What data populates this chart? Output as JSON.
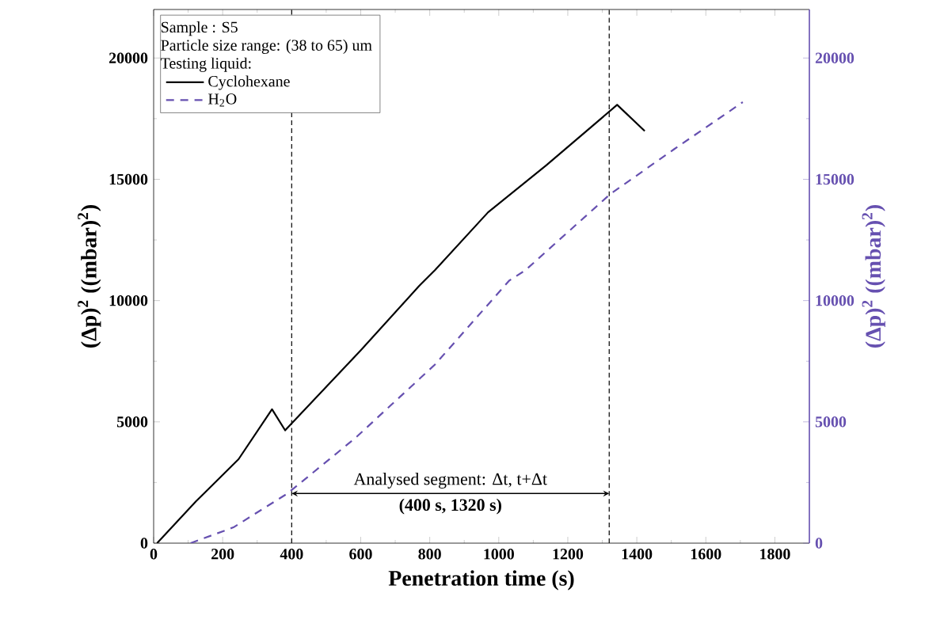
{
  "chart_data": {
    "type": "line",
    "xlabel": "Penetration time (s)",
    "ylabel": "(Δp)$^{2}$ ((mbar)$^{2}$)",
    "y2label": "(Δp)$^{2}$ ((mbar)$^{2}$)",
    "series": [
      {
        "name": "Cyclohexane",
        "color": "#000000",
        "line_style": "solid",
        "x": [
          10,
          123,
          246,
          343,
          381,
          600,
          769,
          815,
          969,
          1138,
          1343,
          1423
        ],
        "values": [
          0,
          1730,
          3460,
          5520,
          4650,
          7950,
          10600,
          11250,
          13640,
          15580,
          18070,
          16990
        ]
      },
      {
        "name": "H$_{2}$O",
        "color": "#6650b0",
        "line_style": "dashed",
        "axis": "y2",
        "x": [
          107,
          231,
          388,
          584,
          815,
          1030,
          1077,
          1323,
          1507,
          1707
        ],
        "values": [
          0,
          650,
          2050,
          4330,
          7360,
          10820,
          11250,
          14390,
          16230,
          18180
        ]
      }
    ],
    "xlim": [
      0,
      1900
    ],
    "xticks": [
      0,
      200,
      400,
      600,
      800,
      1000,
      1200,
      1400,
      1600,
      1800
    ],
    "ylim": [
      0,
      22000
    ],
    "yticks": [
      0,
      5000,
      10000,
      15000,
      20000
    ],
    "y2lim": [
      0,
      22000
    ],
    "y2ticks": [
      0,
      5000,
      10000,
      15000,
      20000
    ],
    "legend": "top left",
    "ref_lines": [
      {
        "axis": "x",
        "value": 400,
        "color": "#000000",
        "line_style": "dashed"
      },
      {
        "axis": "x",
        "value": 1320,
        "color": "#000000",
        "line_style": "dashed"
      }
    ],
    "annotations": [
      "Sample : S5",
      "Particle size range: (38 to 65) um",
      "Testing liquid:",
      "Analysed segment: Δt, t+Δt",
      "**(400 s, 1320 s)**"
    ]
  }
}
